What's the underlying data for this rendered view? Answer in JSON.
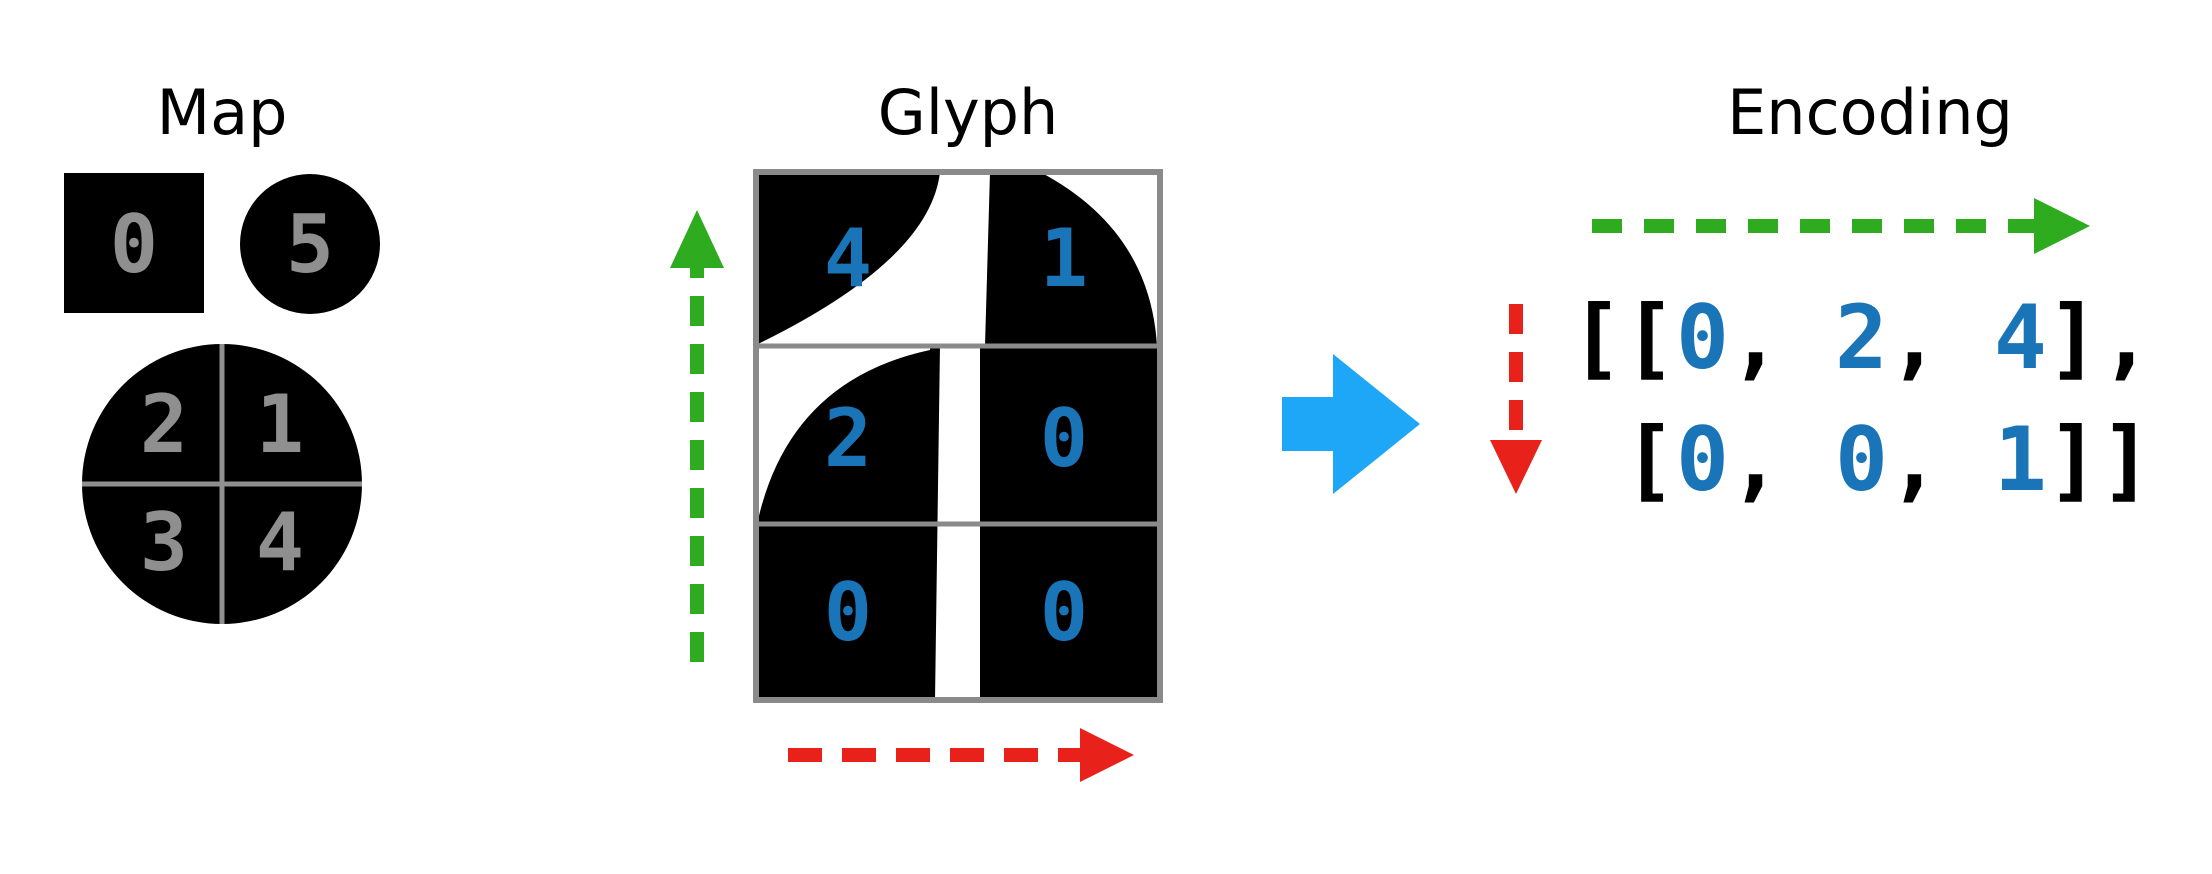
{
  "panels": {
    "map": {
      "title": "Map",
      "square_label": "0",
      "circle_label": "5",
      "quadrants": {
        "top_left": "2",
        "top_right": "1",
        "bottom_left": "3",
        "bottom_right": "4"
      }
    },
    "glyph": {
      "title": "Glyph",
      "cells": [
        [
          "4",
          "1"
        ],
        [
          "2",
          "0"
        ],
        [
          "0",
          "0"
        ]
      ]
    },
    "encoding": {
      "title": "Encoding",
      "rows": [
        {
          "open": "[[",
          "values": [
            "0",
            "2",
            "4"
          ],
          "close": "],",
          "sep": ", "
        },
        {
          "open": "[",
          "values": [
            "0",
            "0",
            "1"
          ],
          "close": "]]",
          "sep": ", "
        }
      ]
    }
  },
  "colors": {
    "green_arrow": "#2eab1f",
    "red_arrow": "#e8221b",
    "blue_arrow": "#1ea7f6",
    "number_blue": "#1a74b8",
    "number_gray": "#8f8f8f",
    "grid_gray": "#8a8a8a"
  },
  "icons": {
    "transform_arrow": "big-right-arrow-icon",
    "glyph_vertical": "dashed-up-arrow-icon",
    "glyph_horizontal": "dashed-right-arrow-icon",
    "encoding_horizontal": "dashed-right-arrow-icon",
    "encoding_vertical": "dashed-down-arrow-icon"
  }
}
